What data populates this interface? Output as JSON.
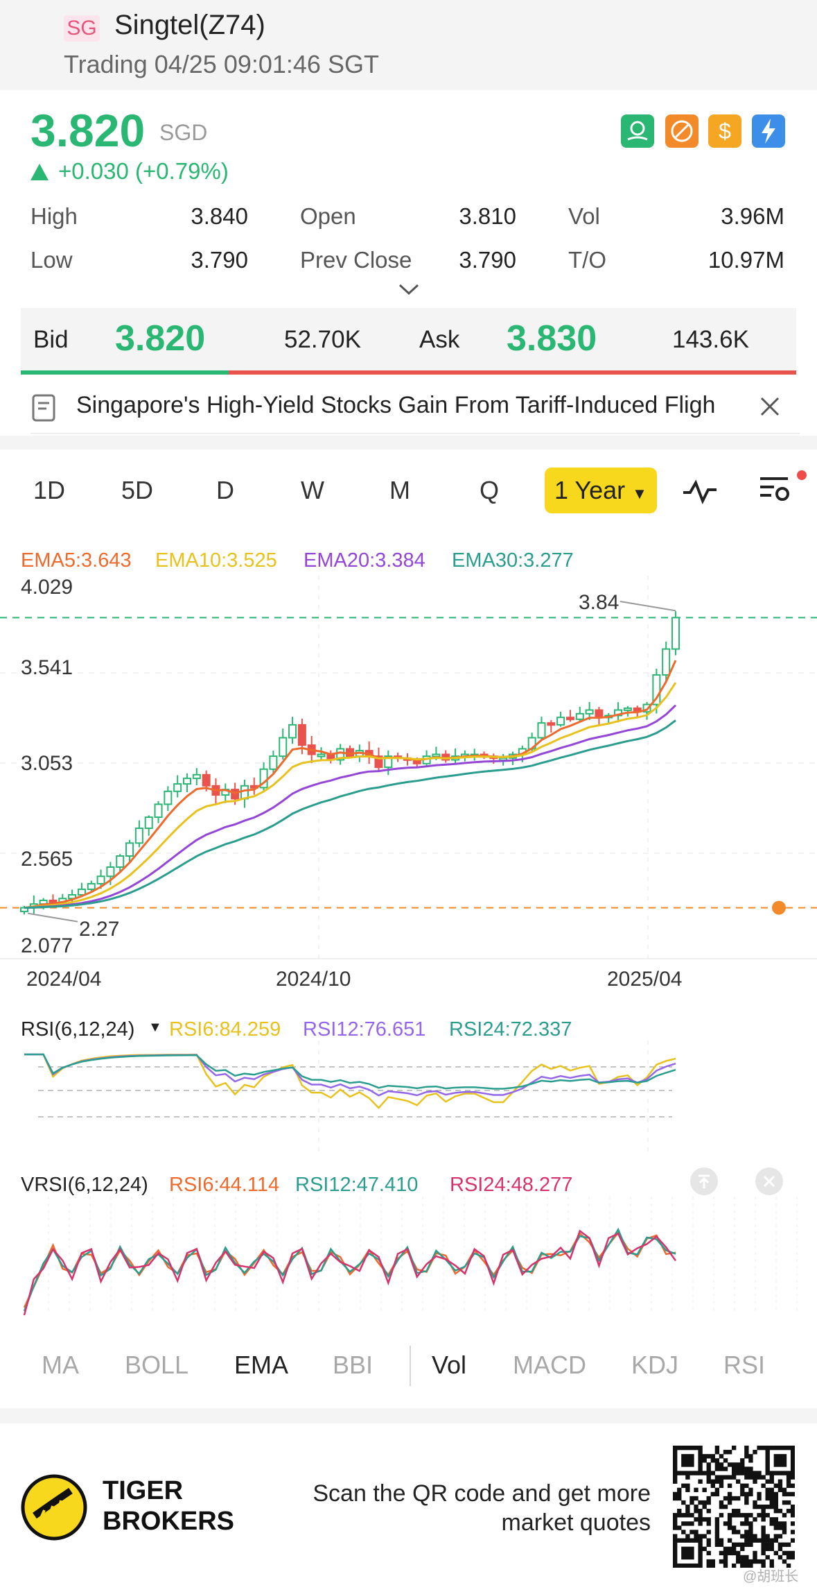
{
  "header": {
    "badge": "SG",
    "title": "Singtel(Z74)",
    "status": "Trading 04/25 09:01:46 SGT"
  },
  "quote": {
    "price": "3.820",
    "currency": "SGD",
    "change": "+0.030 (+0.79%)",
    "color_up": "#2ab673",
    "color_down": "#e9534d",
    "stats": [
      {
        "label": "High",
        "value": "3.840"
      },
      {
        "label": "Open",
        "value": "3.810"
      },
      {
        "label": "Vol",
        "value": "3.96M"
      },
      {
        "label": "Low",
        "value": "3.790"
      },
      {
        "label": "Prev Close",
        "value": "3.790"
      },
      {
        "label": "T/O",
        "value": "10.97M"
      }
    ],
    "icons": [
      "money-hand-icon",
      "no-short-icon",
      "dollar-icon",
      "lightning-icon"
    ]
  },
  "orderbook": {
    "bid_label": "Bid",
    "bid_price": "3.820",
    "bid_size": "52.70K",
    "ask_label": "Ask",
    "ask_price": "3.830",
    "ask_size": "143.6K"
  },
  "news": {
    "headline": "Singapore's High-Yield Stocks Gain From Tariff-Induced Fligh"
  },
  "period_tabs": [
    "1D",
    "5D",
    "D",
    "W",
    "M",
    "Q"
  ],
  "period_selected": "1 Year",
  "ema_legend": [
    {
      "text": "EMA5:3.643",
      "color": "#ee6a2c"
    },
    {
      "text": "EMA10:3.525",
      "color": "#e8c21c"
    },
    {
      "text": "EMA20:3.384",
      "color": "#9446d6"
    },
    {
      "text": "EMA30:3.277",
      "color": "#2a9d8f"
    }
  ],
  "price_axis": [
    "4.029",
    "3.541",
    "3.053",
    "2.565",
    "2.077"
  ],
  "date_axis": [
    "2024/04",
    "2024/10",
    "2025/04"
  ],
  "high_mark": "3.84",
  "low_mark": "2.27",
  "rsi_legend": {
    "label": "RSI(6,12,24)",
    "items": [
      {
        "text": "RSI6:84.259",
        "color": "#e8c21c"
      },
      {
        "text": "RSI12:76.651",
        "color": "#9466ea"
      },
      {
        "text": "RSI24:72.337",
        "color": "#2a9d8f"
      }
    ]
  },
  "vrsi_legend": {
    "label": "VRSI(6,12,24)",
    "items": [
      {
        "text": "RSI6:44.114",
        "color": "#ee6a2c"
      },
      {
        "text": "RSI12:47.410",
        "color": "#2a9d8f"
      },
      {
        "text": "RSI24:48.277",
        "color": "#d6336c"
      }
    ]
  },
  "indicator_tabs": [
    "MA",
    "BOLL",
    "EMA",
    "BBI",
    "Vol",
    "MACD",
    "KDJ",
    "RSI"
  ],
  "indicator_active": [
    "EMA",
    "Vol"
  ],
  "footer": {
    "brand_line1": "TIGER",
    "brand_line2": "BROKERS",
    "promo_line1": "Scan the QR code and get more",
    "promo_line2": "market quotes",
    "watermark": "@胡班长"
  },
  "chart_data": {
    "type": "candlestick",
    "title": "",
    "x_start": "2024/04",
    "x_end": "2025/04",
    "ylim": [
      2.077,
      4.029
    ],
    "closes": [
      2.27,
      2.29,
      2.31,
      2.3,
      2.32,
      2.34,
      2.37,
      2.4,
      2.44,
      2.49,
      2.55,
      2.62,
      2.7,
      2.76,
      2.83,
      2.9,
      2.94,
      2.97,
      2.99,
      2.93,
      2.88,
      2.91,
      2.86,
      2.93,
      2.92,
      3.02,
      3.09,
      3.19,
      3.26,
      3.15,
      3.1,
      3.1,
      3.07,
      3.13,
      3.09,
      3.12,
      3.09,
      3.03,
      3.09,
      3.08,
      3.07,
      3.05,
      3.09,
      3.1,
      3.07,
      3.09,
      3.1,
      3.1,
      3.09,
      3.08,
      3.08,
      3.1,
      3.13,
      3.19,
      3.27,
      3.26,
      3.3,
      3.29,
      3.32,
      3.34,
      3.3,
      3.31,
      3.34,
      3.35,
      3.33,
      3.37,
      3.53,
      3.67,
      3.84
    ],
    "ema": [
      {
        "name": "EMA5",
        "values": [
          2.27,
          3.643
        ]
      },
      {
        "name": "EMA10",
        "values": [
          2.27,
          3.525
        ]
      },
      {
        "name": "EMA20",
        "values": [
          2.27,
          3.384
        ]
      },
      {
        "name": "EMA30",
        "values": [
          2.27,
          3.277
        ]
      }
    ],
    "dashed_levels": [
      3.84,
      2.27
    ]
  }
}
